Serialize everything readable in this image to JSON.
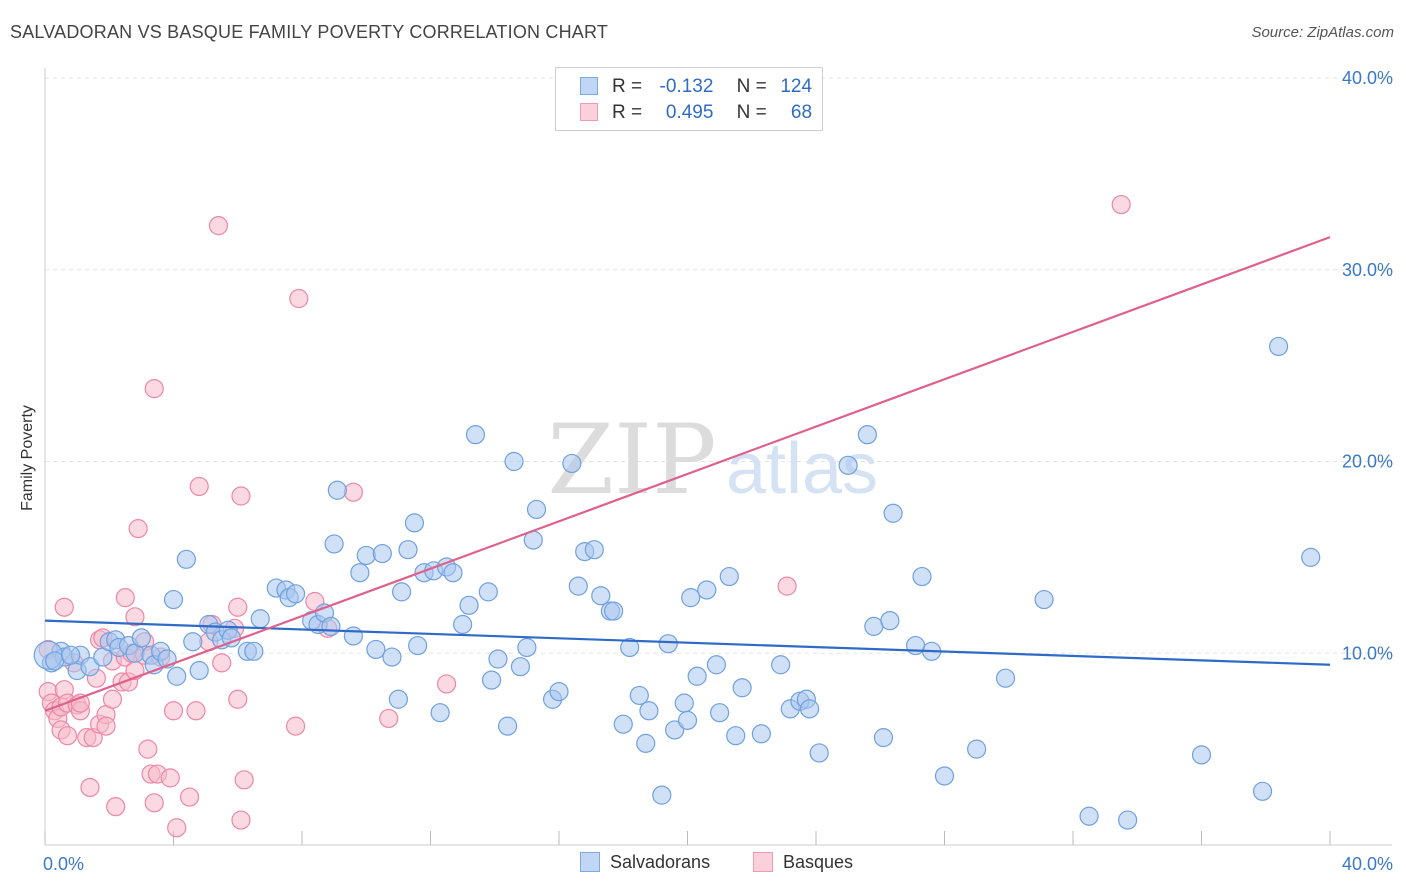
{
  "title": "SALVADORAN VS BASQUE FAMILY POVERTY CORRELATION CHART",
  "source": "Source: ZipAtlas.com",
  "watermark": {
    "zip": "ZIP",
    "atlas": "atlas"
  },
  "legend": {
    "r_label": "R =",
    "n_label": "N =",
    "rows": [
      {
        "r": "-0.132",
        "n": "124",
        "color": "#a9c7ee"
      },
      {
        "r": "0.495",
        "n": "68",
        "color": "#f6b9cb"
      }
    ]
  },
  "bottom_legend": [
    "Salvadorans",
    "Basques"
  ],
  "chart_data": {
    "type": "scatter",
    "title": "SALVADORAN VS BASQUE FAMILY POVERTY CORRELATION CHART",
    "ylabel": "Family Poverty",
    "xlabel": "",
    "xlim": [
      0,
      40
    ],
    "ylim": [
      0,
      40
    ],
    "x_tick_labels": [
      "0.0%",
      "40.0%"
    ],
    "y_tick_labels": [
      "10.0%",
      "20.0%",
      "30.0%",
      "40.0%"
    ],
    "y_ticks": [
      10,
      20,
      30,
      40
    ],
    "grid": true,
    "legend_position": "top-center",
    "series": [
      {
        "name": "Salvadorans",
        "color": "#6fa1e0",
        "fill": "#a9c7ee",
        "line_color": "#2f6bc6",
        "trend": [
          [
            0,
            11.7
          ],
          [
            40,
            9.4
          ]
        ],
        "points": [
          [
            0.2,
            9.5
          ],
          [
            0.5,
            10.1
          ],
          [
            0.6,
            9.8
          ],
          [
            1.0,
            9.1
          ],
          [
            1.1,
            9.9
          ],
          [
            1.4,
            9.3
          ],
          [
            1.8,
            9.8
          ],
          [
            2.0,
            10.6
          ],
          [
            2.2,
            10.7
          ],
          [
            2.3,
            10.3
          ],
          [
            2.6,
            10.4
          ],
          [
            2.8,
            10.0
          ],
          [
            3.0,
            10.8
          ],
          [
            3.3,
            9.9
          ],
          [
            3.4,
            9.4
          ],
          [
            3.6,
            10.1
          ],
          [
            3.8,
            9.7
          ],
          [
            4.0,
            12.8
          ],
          [
            4.1,
            8.8
          ],
          [
            4.4,
            14.9
          ],
          [
            4.6,
            10.6
          ],
          [
            4.8,
            9.1
          ],
          [
            5.1,
            11.5
          ],
          [
            5.3,
            11.1
          ],
          [
            5.5,
            10.7
          ],
          [
            5.7,
            11.2
          ],
          [
            5.8,
            10.8
          ],
          [
            6.3,
            10.1
          ],
          [
            6.5,
            10.1
          ],
          [
            6.7,
            11.8
          ],
          [
            7.2,
            13.4
          ],
          [
            7.5,
            13.3
          ],
          [
            7.6,
            12.9
          ],
          [
            7.8,
            13.1
          ],
          [
            8.3,
            11.7
          ],
          [
            8.5,
            11.5
          ],
          [
            8.7,
            12.1
          ],
          [
            8.9,
            11.4
          ],
          [
            9.0,
            15.7
          ],
          [
            9.1,
            18.5
          ],
          [
            9.6,
            10.9
          ],
          [
            9.8,
            14.2
          ],
          [
            10.0,
            15.1
          ],
          [
            10.3,
            10.2
          ],
          [
            10.5,
            15.2
          ],
          [
            10.8,
            9.8
          ],
          [
            11.0,
            7.6
          ],
          [
            11.1,
            13.2
          ],
          [
            11.3,
            15.4
          ],
          [
            11.5,
            16.8
          ],
          [
            11.6,
            10.4
          ],
          [
            11.8,
            14.2
          ],
          [
            12.1,
            14.3
          ],
          [
            12.3,
            6.9
          ],
          [
            12.5,
            14.5
          ],
          [
            12.7,
            14.2
          ],
          [
            13.0,
            11.5
          ],
          [
            13.2,
            12.5
          ],
          [
            13.4,
            21.4
          ],
          [
            13.8,
            13.2
          ],
          [
            13.9,
            8.6
          ],
          [
            14.1,
            9.7
          ],
          [
            14.4,
            6.2
          ],
          [
            14.6,
            20.0
          ],
          [
            14.8,
            9.3
          ],
          [
            15.0,
            10.3
          ],
          [
            15.2,
            15.9
          ],
          [
            15.3,
            17.5
          ],
          [
            15.8,
            7.6
          ],
          [
            16.0,
            8.0
          ],
          [
            16.4,
            19.9
          ],
          [
            16.6,
            13.5
          ],
          [
            16.8,
            15.3
          ],
          [
            17.1,
            15.4
          ],
          [
            17.3,
            13.0
          ],
          [
            17.6,
            12.2
          ],
          [
            17.7,
            12.2
          ],
          [
            18.0,
            6.3
          ],
          [
            18.2,
            10.3
          ],
          [
            18.5,
            7.8
          ],
          [
            18.7,
            5.3
          ],
          [
            18.8,
            7.0
          ],
          [
            19.2,
            2.6
          ],
          [
            19.4,
            10.5
          ],
          [
            19.6,
            6.0
          ],
          [
            19.9,
            7.4
          ],
          [
            20.0,
            6.5
          ],
          [
            20.1,
            12.9
          ],
          [
            20.3,
            8.8
          ],
          [
            20.6,
            13.3
          ],
          [
            20.9,
            9.4
          ],
          [
            21.0,
            6.9
          ],
          [
            21.3,
            14.0
          ],
          [
            21.5,
            5.7
          ],
          [
            21.7,
            8.2
          ],
          [
            22.3,
            5.8
          ],
          [
            22.9,
            9.4
          ],
          [
            23.2,
            7.1
          ],
          [
            23.5,
            7.5
          ],
          [
            23.7,
            7.6
          ],
          [
            23.8,
            7.1
          ],
          [
            24.1,
            4.8
          ],
          [
            25.0,
            19.8
          ],
          [
            25.6,
            21.4
          ],
          [
            25.8,
            11.4
          ],
          [
            26.1,
            5.6
          ],
          [
            26.3,
            11.7
          ],
          [
            26.4,
            17.3
          ],
          [
            27.3,
            14.0
          ],
          [
            27.1,
            10.4
          ],
          [
            27.6,
            10.1
          ],
          [
            28.0,
            3.6
          ],
          [
            29.0,
            5.0
          ],
          [
            29.9,
            8.7
          ],
          [
            31.1,
            12.8
          ],
          [
            32.5,
            1.5
          ],
          [
            33.7,
            1.3
          ],
          [
            36.0,
            4.7
          ],
          [
            37.9,
            2.8
          ],
          [
            38.4,
            26.0
          ],
          [
            39.4,
            15.0
          ],
          [
            0.1,
            9.9
          ],
          [
            0.3,
            9.6
          ],
          [
            0.8,
            9.9
          ]
        ]
      },
      {
        "name": "Basques",
        "color": "#ee87a6",
        "fill": "#f6b9cb",
        "line_color": "#e0608c",
        "trend": [
          [
            0,
            7.0
          ],
          [
            40,
            31.7
          ]
        ],
        "points": [
          [
            0.1,
            8.0
          ],
          [
            0.1,
            10.2
          ],
          [
            0.2,
            7.4
          ],
          [
            0.3,
            7.0
          ],
          [
            0.4,
            6.6
          ],
          [
            0.5,
            6.0
          ],
          [
            0.5,
            7.2
          ],
          [
            0.6,
            8.1
          ],
          [
            0.6,
            12.4
          ],
          [
            0.7,
            7.4
          ],
          [
            0.7,
            5.7
          ],
          [
            0.9,
            9.5
          ],
          [
            1.0,
            7.3
          ],
          [
            1.1,
            7.0
          ],
          [
            1.1,
            7.4
          ],
          [
            1.3,
            5.6
          ],
          [
            1.4,
            3.0
          ],
          [
            1.5,
            5.6
          ],
          [
            1.6,
            8.7
          ],
          [
            1.7,
            10.7
          ],
          [
            1.7,
            6.3
          ],
          [
            1.8,
            10.8
          ],
          [
            1.9,
            6.8
          ],
          [
            1.9,
            6.2
          ],
          [
            2.1,
            9.6
          ],
          [
            2.1,
            7.6
          ],
          [
            2.2,
            2.0
          ],
          [
            2.4,
            8.5
          ],
          [
            2.5,
            9.8
          ],
          [
            2.5,
            12.9
          ],
          [
            2.6,
            8.5
          ],
          [
            2.7,
            10.0
          ],
          [
            2.8,
            11.9
          ],
          [
            2.8,
            9.1
          ],
          [
            2.9,
            16.5
          ],
          [
            3.1,
            10.6
          ],
          [
            3.1,
            9.9
          ],
          [
            3.2,
            5.0
          ],
          [
            3.3,
            3.7
          ],
          [
            3.4,
            23.8
          ],
          [
            3.4,
            2.2
          ],
          [
            3.5,
            3.7
          ],
          [
            3.6,
            9.8
          ],
          [
            3.9,
            3.5
          ],
          [
            4.0,
            7.0
          ],
          [
            4.1,
            0.9
          ],
          [
            4.5,
            2.5
          ],
          [
            4.7,
            7.0
          ],
          [
            4.8,
            18.7
          ],
          [
            5.1,
            10.6
          ],
          [
            5.2,
            11.5
          ],
          [
            5.4,
            32.3
          ],
          [
            5.5,
            9.5
          ],
          [
            5.9,
            11.3
          ],
          [
            6.0,
            7.6
          ],
          [
            6.0,
            12.4
          ],
          [
            6.1,
            18.2
          ],
          [
            6.1,
            1.3
          ],
          [
            6.2,
            3.4
          ],
          [
            7.8,
            6.2
          ],
          [
            7.9,
            28.5
          ],
          [
            8.4,
            12.7
          ],
          [
            8.8,
            11.3
          ],
          [
            9.6,
            18.4
          ],
          [
            10.7,
            6.6
          ],
          [
            12.5,
            8.4
          ],
          [
            23.1,
            13.5
          ],
          [
            33.5,
            33.4
          ]
        ]
      }
    ]
  }
}
